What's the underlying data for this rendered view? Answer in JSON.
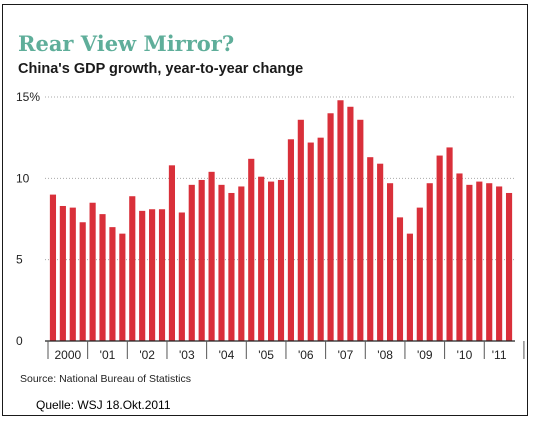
{
  "title": "Rear View Mirror?",
  "subtitle": "China's GDP growth, year-to-year change",
  "source": "Source: National Bureau of Statistics",
  "caption": "Quelle: WSJ 18.Okt.2011",
  "colors": {
    "bar": "#d9303a",
    "title": "#5fae9a",
    "grid": "#aaaaaa"
  },
  "chart_data": {
    "type": "bar",
    "title": "Rear View Mirror?",
    "subtitle": "China's GDP growth, year-to-year change",
    "xlabel": "",
    "ylabel": "",
    "ylim": [
      0,
      15
    ],
    "yticks": [
      0,
      5,
      10,
      15
    ],
    "ytick_labels": [
      "0",
      "5",
      "10",
      "15%"
    ],
    "grid": "dotted horizontal",
    "x_tick_labels": [
      "2000",
      "'01",
      "'02",
      "'03",
      "'04",
      "'05",
      "'06",
      "'07",
      "'08",
      "'09",
      "'10",
      "'11"
    ],
    "categories": [
      "2000 Q1",
      "2000 Q2",
      "2000 Q3",
      "2000 Q4",
      "2001 Q1",
      "2001 Q2",
      "2001 Q3",
      "2001 Q4",
      "2002 Q1",
      "2002 Q2",
      "2002 Q3",
      "2002 Q4",
      "2003 Q1",
      "2003 Q2",
      "2003 Q3",
      "2003 Q4",
      "2004 Q1",
      "2004 Q2",
      "2004 Q3",
      "2004 Q4",
      "2005 Q1",
      "2005 Q2",
      "2005 Q3",
      "2005 Q4",
      "2006 Q1",
      "2006 Q2",
      "2006 Q3",
      "2006 Q4",
      "2007 Q1",
      "2007 Q2",
      "2007 Q3",
      "2007 Q4",
      "2008 Q1",
      "2008 Q2",
      "2008 Q3",
      "2008 Q4",
      "2009 Q1",
      "2009 Q2",
      "2009 Q3",
      "2009 Q4",
      "2010 Q1",
      "2010 Q2",
      "2010 Q3",
      "2010 Q4",
      "2011 Q1",
      "2011 Q2",
      "2011 Q3"
    ],
    "values": [
      9.0,
      8.3,
      8.2,
      7.3,
      8.5,
      7.8,
      7.0,
      6.6,
      8.9,
      8.0,
      8.1,
      8.1,
      10.8,
      7.9,
      9.6,
      9.9,
      10.4,
      9.6,
      9.1,
      9.5,
      11.2,
      10.1,
      9.8,
      9.9,
      12.4,
      13.6,
      12.2,
      12.5,
      14.0,
      14.8,
      14.4,
      13.6,
      11.3,
      10.9,
      9.7,
      7.6,
      6.6,
      8.2,
      9.7,
      11.4,
      11.9,
      10.3,
      9.6,
      9.8,
      9.7,
      9.5,
      9.1
    ]
  }
}
